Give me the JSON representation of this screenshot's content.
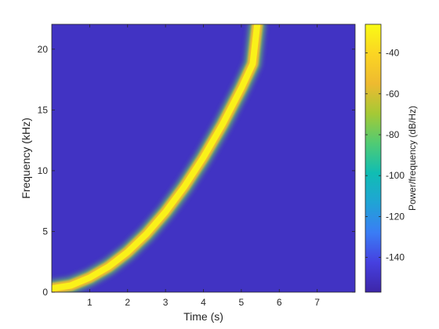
{
  "chart_data": {
    "type": "heatmap",
    "title": "",
    "xlabel": "Time (s)",
    "ylabel": "Frequency (kHz)",
    "colorbar_label": "Power/frequency (dB/Hz)",
    "xlim": [
      0,
      8
    ],
    "ylim": [
      0,
      22.05
    ],
    "xticks": [
      1,
      2,
      3,
      4,
      5,
      6,
      7
    ],
    "yticks": [
      0,
      5,
      10,
      15,
      20
    ],
    "clim": [
      -157,
      -26
    ],
    "cticks": [
      -40,
      -60,
      -80,
      -100,
      -120,
      -140
    ],
    "background_level": -150,
    "grid": false,
    "colormap": "parula",
    "colors": {
      "background": "#3d26a8",
      "peak": "#f9fb15",
      "ramp": [
        "#3d26a8",
        "#4640e0",
        "#3a7df5",
        "#20a4d5",
        "#10bdb3",
        "#50cb74",
        "#a5c935",
        "#eeba30",
        "#fbd523",
        "#f9fb15"
      ]
    },
    "ridge": {
      "name": "chirp",
      "level": -30,
      "x": [
        0,
        0.5,
        1.0,
        1.5,
        2.0,
        2.5,
        3.0,
        3.5,
        4.0,
        4.5,
        5.0,
        5.3,
        5.42
      ],
      "y": [
        0.3,
        0.55,
        1.2,
        2.1,
        3.3,
        4.8,
        6.6,
        8.7,
        11.1,
        13.8,
        16.8,
        18.8,
        22.05
      ]
    }
  }
}
